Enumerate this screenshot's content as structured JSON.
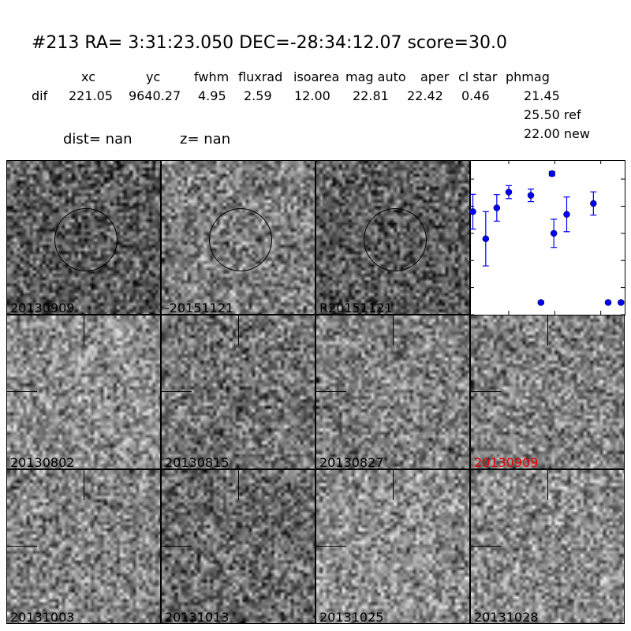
{
  "header": {
    "title": "#213   RA= 3:31:23.050 DEC=-28:34:12.07       score=30.0",
    "columns": [
      "xc",
      "yc",
      "fwhm",
      "fluxrad",
      "isoarea",
      "mag auto",
      "aper",
      "cl star",
      "phmag"
    ],
    "row_label": "dif",
    "row_values": [
      "221.05",
      "9640.27",
      "4.95",
      "2.59",
      "12.00",
      "22.81",
      "22.42",
      "0.46"
    ],
    "phmag": [
      "21.45",
      "25.50 ref",
      "22.00 new"
    ],
    "dist": "dist=   nan",
    "z": "z=   nan"
  },
  "stamps": [
    {
      "label": "20130909",
      "circle": true
    },
    {
      "label": "-20151121",
      "circle": true
    },
    {
      "label": "R20151121",
      "circle": true
    },
    {
      "label": "20130802",
      "cross": true
    },
    {
      "label": "20130815",
      "cross": true
    },
    {
      "label": "20130827",
      "cross": true
    },
    {
      "label": "20130909",
      "cross": true,
      "highlight": true
    },
    {
      "label": "20131003",
      "cross": true
    },
    {
      "label": "20131013",
      "cross": true
    },
    {
      "label": "20131025",
      "cross": true
    },
    {
      "label": "20131028",
      "cross": true
    }
  ],
  "chart_data": {
    "type": "scatter",
    "marker_color": "#0000ff",
    "xlim": [
      -42,
      126
    ],
    "ylim": [
      26,
      20.3
    ],
    "y_inverted": true,
    "xticks": [
      0,
      50,
      100
    ],
    "yticks": [
      21,
      22,
      23,
      24,
      25,
      26
    ],
    "points": [
      {
        "x": -39,
        "y": 22.2,
        "err": 0.64
      },
      {
        "x": -25,
        "y": 23.2,
        "err": 1.0
      },
      {
        "x": -13,
        "y": 22.06,
        "err": 0.49
      },
      {
        "x": 0,
        "y": 21.48,
        "err": 0.24
      },
      {
        "x": 24,
        "y": 21.6,
        "err": 0.23
      },
      {
        "x": 35,
        "y": 25.55,
        "err": 0.05
      },
      {
        "x": 47,
        "y": 20.8,
        "err": 0.08
      },
      {
        "x": 49,
        "y": 23.0,
        "err": 0.52
      },
      {
        "x": 63,
        "y": 22.3,
        "err": 0.64
      },
      {
        "x": 92,
        "y": 21.9,
        "err": 0.43
      },
      {
        "x": 108,
        "y": 25.55,
        "err": 0.05
      },
      {
        "x": 122,
        "y": 25.55,
        "err": 0.05
      }
    ]
  }
}
